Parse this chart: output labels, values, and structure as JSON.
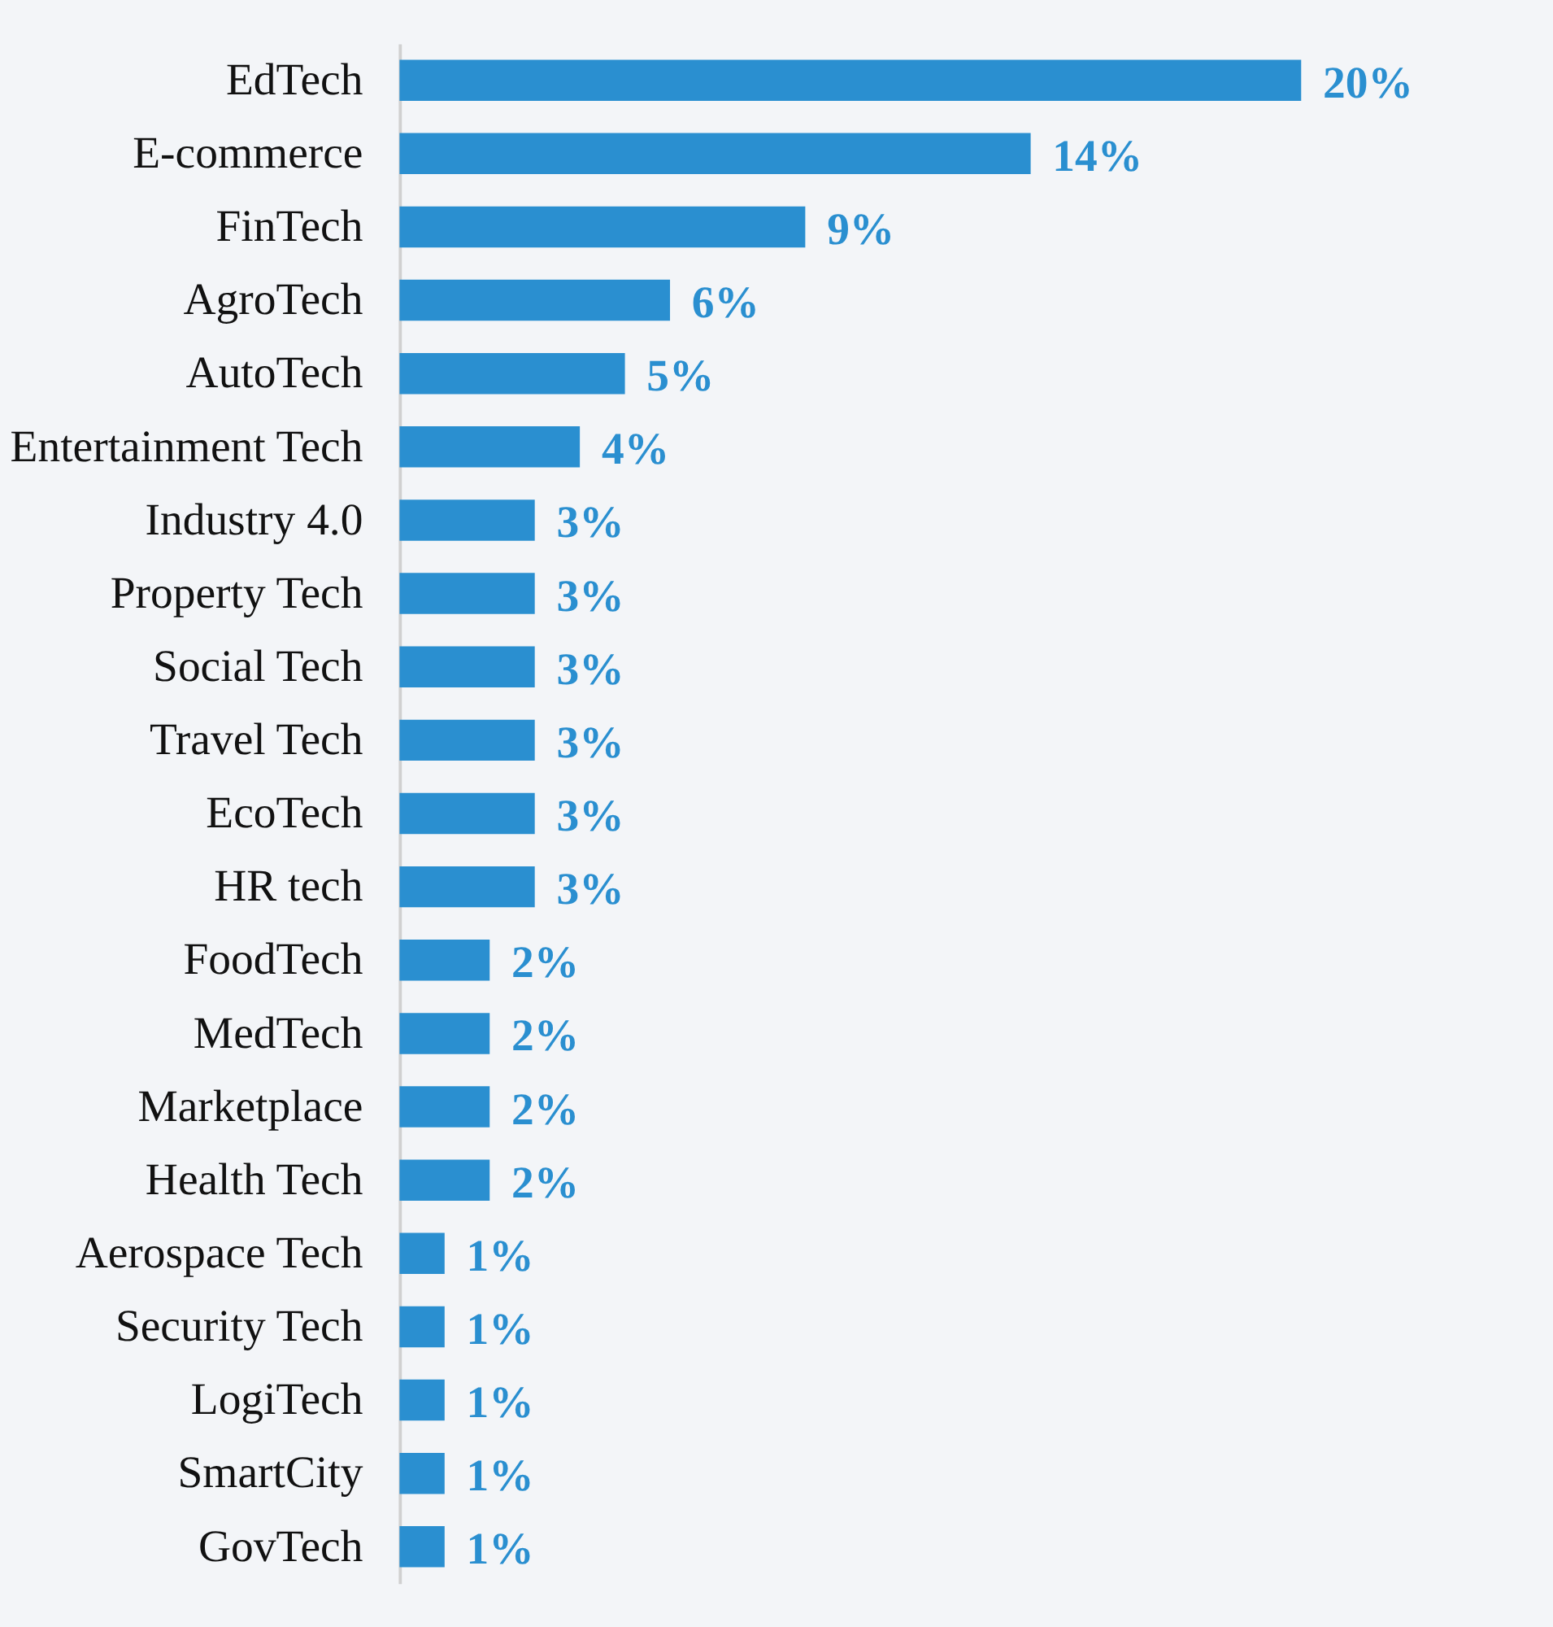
{
  "chart_data": {
    "type": "bar",
    "orientation": "horizontal",
    "categories": [
      "EdTech",
      "E-commerce",
      "FinTech",
      "AgroTech",
      "AutoTech",
      "Entertainment Tech",
      "Industry 4.0",
      "Property Tech",
      "Social Tech",
      "Travel Tech",
      "EcoTech",
      "HR tech",
      "FoodTech",
      "MedTech",
      "Marketplace",
      "Health Tech",
      "Aerospace Tech",
      "Security Tech",
      "LogiTech",
      "SmartCity",
      "GovTech"
    ],
    "values": [
      20,
      14,
      9,
      6,
      5,
      4,
      3,
      3,
      3,
      3,
      3,
      3,
      2,
      2,
      2,
      2,
      1,
      1,
      1,
      1,
      1
    ],
    "value_labels": [
      "20%",
      "14%",
      "9%",
      "6%",
      "5%",
      "4%",
      "3%",
      "3%",
      "3%",
      "3%",
      "3%",
      "3%",
      "2%",
      "2%",
      "2%",
      "2%",
      "1%",
      "1%",
      "1%",
      "1%",
      "1%"
    ],
    "color": "#2a8fd0",
    "grid": false
  }
}
